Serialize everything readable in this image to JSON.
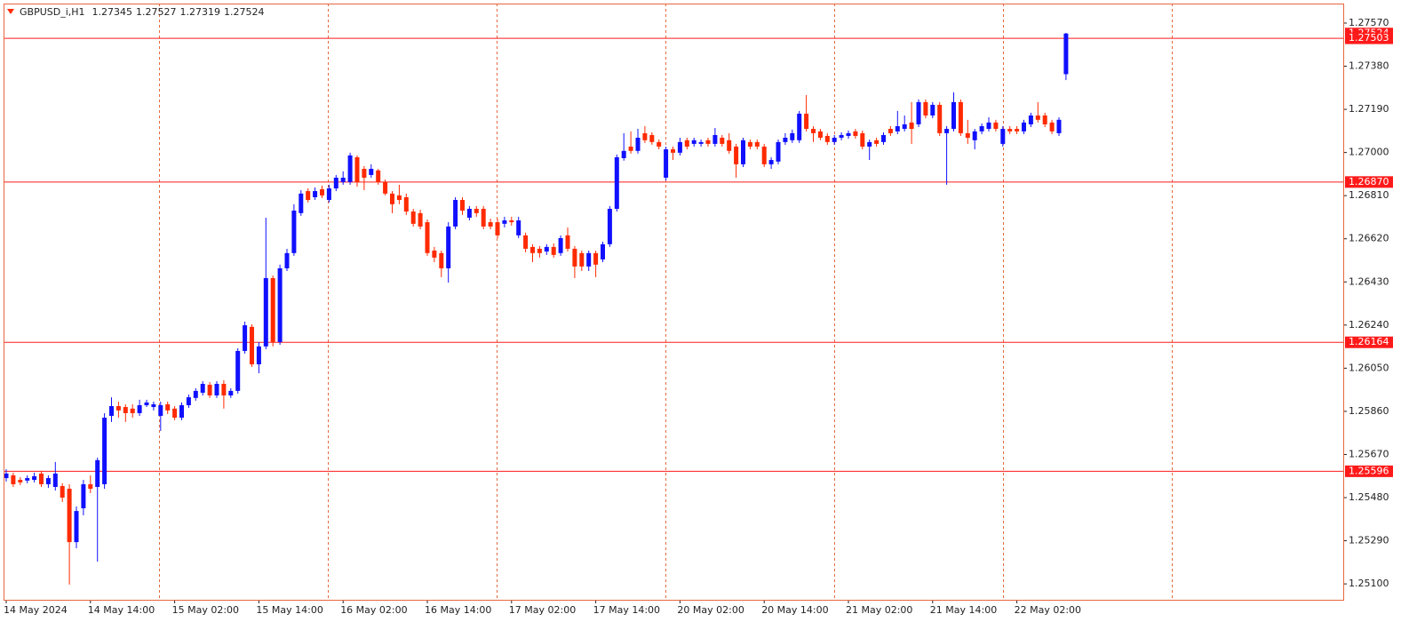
{
  "chart_data": {
    "type": "candlestick",
    "title": "GBPUSD_i,H1",
    "up_color": "#1010ff",
    "down_color": "#ff2a00",
    "level_color": "#ff1a1a",
    "ylim": [
      1.2503,
      1.27656
    ],
    "yticks": [
      {
        "value": 1.251,
        "label": "1.25100"
      },
      {
        "value": 1.2529,
        "label": "1.25290"
      },
      {
        "value": 1.2548,
        "label": "1.25480"
      },
      {
        "value": 1.2567,
        "label": "1.25670"
      },
      {
        "value": 1.2586,
        "label": "1.25860"
      },
      {
        "value": 1.2605,
        "label": "1.26050"
      },
      {
        "value": 1.2624,
        "label": "1.26240"
      },
      {
        "value": 1.2643,
        "label": "1.26430"
      },
      {
        "value": 1.2662,
        "label": "1.26620"
      },
      {
        "value": 1.2681,
        "label": "1.26810"
      },
      {
        "value": 1.27,
        "label": "1.27000"
      },
      {
        "value": 1.2719,
        "label": "1.27190"
      },
      {
        "value": 1.2738,
        "label": "1.27380"
      },
      {
        "value": 1.2757,
        "label": "1.27570"
      }
    ],
    "levels": [
      1.27503,
      {
        "value": 1.2687,
        "label": "1.26870"
      },
      1.26164,
      1.25596
    ],
    "categories": [
      "14 May 2024",
      null,
      null,
      null,
      null,
      null,
      null,
      null,
      null,
      null,
      null,
      null,
      "14 May 14:00",
      null,
      null,
      null,
      null,
      null,
      null,
      null,
      null,
      null,
      null,
      null,
      "15 May 02:00",
      null,
      null,
      null,
      null,
      null,
      null,
      null,
      null,
      null,
      null,
      null,
      "15 May 14:00",
      null,
      null,
      null,
      null,
      null,
      null,
      null,
      null,
      null,
      null,
      null,
      "16 May 02:00",
      null,
      null,
      null,
      null,
      null,
      null,
      null,
      null,
      null,
      null,
      null,
      "16 May 14:00",
      null,
      null,
      null,
      null,
      null,
      null,
      null,
      null,
      null,
      null,
      null,
      "17 May 02:00",
      null,
      null,
      null,
      null,
      null,
      null,
      null,
      null,
      null,
      null,
      null,
      "17 May 14:00",
      null,
      null,
      null,
      null,
      null,
      null,
      null,
      null,
      null,
      null,
      null,
      "20 May 02:00",
      null,
      null,
      null,
      null,
      null,
      null,
      null,
      null,
      null,
      null,
      null,
      "20 May 14:00",
      null,
      null,
      null,
      null,
      null,
      null,
      null,
      null,
      null,
      null,
      null,
      "21 May 02:00",
      null,
      null,
      null,
      null,
      null,
      null,
      null,
      null,
      null,
      null,
      null,
      "21 May 14:00",
      null,
      null,
      null,
      null,
      null,
      null,
      null,
      null,
      null,
      null,
      null,
      "22 May 02:00",
      null,
      null,
      null,
      null,
      null,
      null,
      null
    ],
    "open": [
      1.25566,
      1.25578,
      1.25558,
      1.25555,
      1.25558,
      1.25586,
      1.25539,
      1.25527,
      1.25531,
      1.25519,
      1.25284,
      1.25433,
      1.25539,
      1.25527,
      1.25539,
      1.2584,
      1.25883,
      1.25879,
      1.25872,
      1.25852,
      1.25887,
      1.25879,
      1.2584,
      1.25891,
      1.25872,
      1.25832,
      1.25887,
      1.25919,
      1.25942,
      1.25977,
      1.2593,
      1.25981,
      1.2593,
      1.2595,
      1.26126,
      1.26232,
      1.26067,
      1.26146,
      1.26447,
      1.26165,
      1.2649,
      1.26557,
      1.26733,
      1.2683,
      1.26803,
      1.26838,
      1.26791,
      1.26842,
      1.2687,
      1.2687,
      1.26979,
      1.26928,
      1.26901,
      1.26921,
      1.2687,
      1.26819,
      1.26811,
      1.26803,
      1.2674,
      1.26733,
      1.26693,
      1.26568,
      1.26557,
      1.2649,
      1.26674,
      1.26791,
      1.26713,
      1.26752,
      1.26752,
      1.26693,
      1.26693,
      1.26686,
      1.26701,
      1.26635,
      1.26635,
      1.26584,
      1.26576,
      1.26564,
      1.26584,
      1.26557,
      1.26635,
      1.26576,
      1.26557,
      1.26498,
      1.26557,
      1.26529,
      1.26596,
      1.26752,
      1.26975,
      1.27026,
      1.27007,
      1.27085,
      1.27077,
      1.27046,
      1.26889,
      1.27014,
      1.26999,
      1.27054,
      1.27038,
      1.27038,
      1.27054,
      1.27038,
      1.27065,
      1.27054,
      1.27026,
      1.26948,
      1.27046,
      1.27046,
      1.27026,
      1.26948,
      1.2696,
      1.27046,
      1.27054,
      1.27054,
      1.27171,
      1.27104,
      1.27093,
      1.27073,
      1.27046,
      1.27065,
      1.27073,
      1.27093,
      1.27085,
      1.27026,
      1.27054,
      1.27046,
      1.27104,
      1.27093,
      1.27104,
      1.27132,
      1.27124,
      1.27222,
      1.27163,
      1.2721,
      1.27085,
      1.27104,
      1.27222,
      1.27085,
      1.27054,
      1.27093,
      1.27104,
      1.27132,
      1.27038,
      1.27104,
      1.27104,
      1.27093,
      1.27124,
      1.27163,
      1.27163,
      1.27132,
      1.27085,
      1.27345
    ],
    "high": [
      1.25605,
      1.2559,
      1.2557,
      1.25578,
      1.2559,
      1.25598,
      1.25578,
      1.25637,
      1.25543,
      1.25539,
      1.25441,
      1.25558,
      1.25578,
      1.25656,
      1.25852,
      1.25922,
      1.25903,
      1.25891,
      1.25891,
      1.25911,
      1.25911,
      1.25903,
      1.25903,
      1.25903,
      1.25883,
      1.25899,
      1.25934,
      1.25962,
      1.25993,
      1.25989,
      1.25993,
      1.25997,
      1.25962,
      1.26138,
      1.26255,
      1.26243,
      1.26165,
      1.26713,
      1.26459,
      1.26506,
      1.26576,
      1.26772,
      1.26834,
      1.26842,
      1.26846,
      1.26854,
      1.26858,
      1.26901,
      1.26917,
      1.26999,
      1.26987,
      1.2694,
      1.26948,
      1.26928,
      1.26881,
      1.2683,
      1.26858,
      1.26819,
      1.26752,
      1.26748,
      1.26705,
      1.26584,
      1.26568,
      1.26693,
      1.26803,
      1.26803,
      1.26764,
      1.26764,
      1.26764,
      1.26709,
      1.26709,
      1.26717,
      1.26717,
      1.26717,
      1.26647,
      1.26596,
      1.26588,
      1.26596,
      1.266,
      1.26635,
      1.2667,
      1.26588,
      1.26568,
      1.26568,
      1.26568,
      1.26607,
      1.26764,
      1.26991,
      1.27085,
      1.27093,
      1.27104,
      1.27116,
      1.27089,
      1.27057,
      1.27026,
      1.27026,
      1.27065,
      1.27065,
      1.27065,
      1.27057,
      1.27065,
      1.27108,
      1.27077,
      1.27085,
      1.27038,
      1.27065,
      1.27057,
      1.27057,
      1.27038,
      1.26979,
      1.27057,
      1.27085,
      1.27101,
      1.27183,
      1.27253,
      1.27116,
      1.27104,
      1.27085,
      1.27077,
      1.27089,
      1.27097,
      1.27104,
      1.27097,
      1.27057,
      1.27065,
      1.27089,
      1.27116,
      1.27183,
      1.27163,
      1.27222,
      1.27234,
      1.27234,
      1.27222,
      1.27222,
      1.27116,
      1.27265,
      1.27234,
      1.27144,
      1.27104,
      1.27128,
      1.27155,
      1.27144,
      1.27116,
      1.27116,
      1.27116,
      1.27144,
      1.27175,
      1.27222,
      1.27175,
      1.27144,
      1.27155,
      1.27527
    ],
    "low": [
      1.25551,
      1.25527,
      1.25535,
      1.25543,
      1.25547,
      1.25527,
      1.25523,
      1.25511,
      1.25461,
      1.25097,
      1.25257,
      1.25402,
      1.255,
      1.25198,
      1.25519,
      1.25813,
      1.25832,
      1.25813,
      1.25832,
      1.2584,
      1.25879,
      1.25864,
      1.25774,
      1.25848,
      1.25821,
      1.25821,
      1.25875,
      1.25907,
      1.2593,
      1.25919,
      1.25919,
      1.25872,
      1.25919,
      1.25938,
      1.26114,
      1.26056,
      1.26028,
      1.26134,
      1.26146,
      1.26153,
      1.26478,
      1.26545,
      1.26721,
      1.2678,
      1.26791,
      1.26799,
      1.2678,
      1.2683,
      1.26858,
      1.26858,
      1.2685,
      1.26834,
      1.26889,
      1.26858,
      1.26811,
      1.26733,
      1.26772,
      1.26725,
      1.26674,
      1.26662,
      1.26545,
      1.26517,
      1.26451,
      1.26427,
      1.26662,
      1.26725,
      1.26701,
      1.26717,
      1.26662,
      1.26662,
      1.26623,
      1.2667,
      1.26678,
      1.26623,
      1.2656,
      1.26517,
      1.26537,
      1.26549,
      1.26537,
      1.26545,
      1.26564,
      1.26447,
      1.26478,
      1.26478,
      1.26451,
      1.26517,
      1.26584,
      1.2674,
      1.26964,
      1.26995,
      1.26995,
      1.27042,
      1.27034,
      1.27014,
      1.26877,
      1.26967,
      1.26987,
      1.27014,
      1.27026,
      1.27026,
      1.27026,
      1.27026,
      1.27026,
      1.26995,
      1.26889,
      1.26936,
      1.27014,
      1.27014,
      1.26936,
      1.26928,
      1.26948,
      1.27034,
      1.27042,
      1.27042,
      1.27093,
      1.27046,
      1.27054,
      1.27034,
      1.27034,
      1.27054,
      1.27061,
      1.27061,
      1.27014,
      1.26967,
      1.27026,
      1.27034,
      1.27073,
      1.27081,
      1.27093,
      1.27038,
      1.27112,
      1.27151,
      1.27151,
      1.27073,
      1.26858,
      1.27093,
      1.27073,
      1.27038,
      1.27014,
      1.27081,
      1.27093,
      1.27093,
      1.27026,
      1.27081,
      1.27081,
      1.27081,
      1.27112,
      1.27132,
      1.27112,
      1.27081,
      1.27073,
      1.27319
    ],
    "close": [
      1.25586,
      1.25539,
      1.25547,
      1.25566,
      1.25574,
      1.25539,
      1.25566,
      1.25586,
      1.2548,
      1.25284,
      1.25421,
      1.25539,
      1.25519,
      1.25645,
      1.25832,
      1.25883,
      1.25864,
      1.25852,
      1.25852,
      1.25887,
      1.25899,
      1.25891,
      1.25887,
      1.25864,
      1.25832,
      1.25887,
      1.25922,
      1.2595,
      1.25981,
      1.2593,
      1.25981,
      1.2593,
      1.2595,
      1.26126,
      1.26239,
      1.26067,
      1.26146,
      1.26447,
      1.26165,
      1.2649,
      1.26557,
      1.26744,
      1.26819,
      1.26791,
      1.2683,
      1.26811,
      1.26842,
      1.26889,
      1.26889,
      1.26987,
      1.2687,
      1.26889,
      1.26928,
      1.2687,
      1.26819,
      1.26772,
      1.26791,
      1.2674,
      1.26686,
      1.26674,
      1.26557,
      1.26537,
      1.2649,
      1.26674,
      1.26791,
      1.26744,
      1.26752,
      1.26733,
      1.26674,
      1.26674,
      1.26635,
      1.26701,
      1.26693,
      1.26701,
      1.26576,
      1.26557,
      1.26557,
      1.26584,
      1.26549,
      1.26623,
      1.26576,
      1.26498,
      1.26498,
      1.26557,
      1.26506,
      1.26596,
      1.26752,
      1.26979,
      1.27007,
      1.27007,
      1.27065,
      1.27054,
      1.27046,
      1.27026,
      1.27014,
      1.26999,
      1.27046,
      1.27026,
      1.27054,
      1.27046,
      1.27038,
      1.27077,
      1.27038,
      1.27007,
      1.26948,
      1.27054,
      1.27026,
      1.27026,
      1.26948,
      1.26967,
      1.27046,
      1.27065,
      1.27085,
      1.27171,
      1.27104,
      1.27085,
      1.27065,
      1.27046,
      1.27065,
      1.27077,
      1.27085,
      1.27073,
      1.27026,
      1.27046,
      1.27038,
      1.27077,
      1.27085,
      1.27116,
      1.27124,
      1.27104,
      1.27222,
      1.27163,
      1.2721,
      1.27085,
      1.27104,
      1.27222,
      1.27085,
      1.27065,
      1.27093,
      1.27116,
      1.27132,
      1.27104,
      1.27104,
      1.27093,
      1.27093,
      1.27132,
      1.27163,
      1.27144,
      1.27124,
      1.27093,
      1.27144,
      1.27524
    ]
  }
}
